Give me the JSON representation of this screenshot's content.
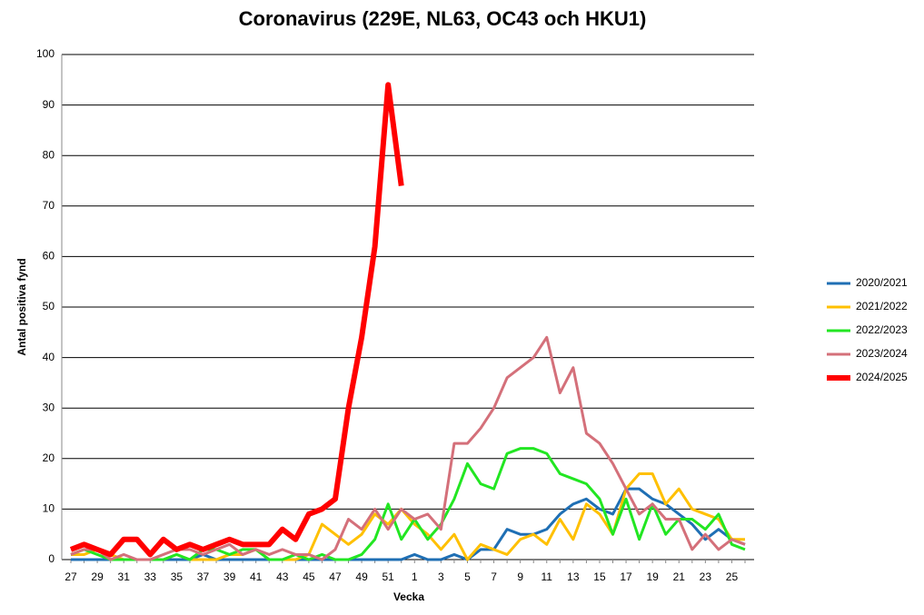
{
  "chart_data": {
    "type": "line",
    "title": "Coronavirus (229E, NL63, OC43 och HKU1)",
    "x_label": "Vecka",
    "y_label": "Antal positiva fynd",
    "categories": [
      "27",
      null,
      "29",
      null,
      "31",
      null,
      "33",
      null,
      "35",
      null,
      "37",
      null,
      "39",
      null,
      "41",
      null,
      "43",
      null,
      "45",
      null,
      "47",
      null,
      "49",
      null,
      "51",
      null,
      "1",
      null,
      "3",
      null,
      "5",
      null,
      "7",
      null,
      "9",
      null,
      "11",
      null,
      "13",
      null,
      "15",
      null,
      "17",
      null,
      "19",
      null,
      "21",
      null,
      "23",
      null,
      "25",
      null
    ],
    "ylim": [
      0,
      100
    ],
    "yticks": [
      0,
      10,
      20,
      30,
      40,
      50,
      60,
      70,
      80,
      90,
      100
    ],
    "grid": true,
    "legend": "right",
    "series": [
      {
        "name": "2020/2021",
        "color": "#1f6fb4",
        "width": 3,
        "values": [
          0,
          0,
          0,
          0,
          0,
          0,
          0,
          0,
          0,
          0,
          1,
          0,
          0,
          0,
          0,
          0,
          0,
          0,
          0,
          0,
          0,
          0,
          0,
          0,
          0,
          0,
          1,
          0,
          0,
          1,
          0,
          2,
          2,
          6,
          5,
          5,
          6,
          9,
          11,
          12,
          10,
          9,
          14,
          14,
          12,
          11,
          9,
          7,
          4,
          6,
          4,
          3
        ]
      },
      {
        "name": "2021/2022",
        "color": "#ffc000",
        "width": 3,
        "values": [
          1,
          1,
          2,
          1,
          0,
          0,
          0,
          0,
          1,
          0,
          0,
          0,
          1,
          1,
          2,
          0,
          0,
          0,
          1,
          7,
          5,
          3,
          5,
          9,
          7,
          10,
          7,
          5,
          2,
          5,
          0,
          3,
          2,
          1,
          4,
          5,
          3,
          8,
          4,
          11,
          9,
          5,
          14,
          17,
          17,
          11,
          14,
          10,
          9,
          8,
          4,
          4
        ]
      },
      {
        "name": "2022/2023",
        "color": "#22e622",
        "width": 3,
        "values": [
          1,
          2,
          1,
          0,
          0,
          0,
          0,
          0,
          1,
          0,
          2,
          2,
          1,
          2,
          2,
          0,
          0,
          1,
          0,
          1,
          0,
          0,
          1,
          4,
          11,
          4,
          8,
          4,
          7,
          12,
          19,
          15,
          14,
          21,
          22,
          22,
          21,
          17,
          16,
          15,
          12,
          5,
          12,
          4,
          11,
          5,
          8,
          8,
          6,
          9,
          3,
          2
        ]
      },
      {
        "name": "2023/2024",
        "color": "#d4707a",
        "width": 3,
        "values": [
          1,
          2,
          2,
          0,
          1,
          0,
          0,
          1,
          2,
          2,
          1,
          2,
          3,
          1,
          2,
          1,
          2,
          1,
          1,
          0,
          2,
          8,
          6,
          10,
          6,
          10,
          8,
          9,
          6,
          23,
          23,
          26,
          30,
          36,
          38,
          40,
          44,
          33,
          38,
          25,
          23,
          19,
          14,
          9,
          11,
          8,
          8,
          2,
          5,
          2,
          4,
          3
        ]
      },
      {
        "name": "2024/2025",
        "color": "#ff0000",
        "width": 6,
        "values": [
          2,
          3,
          2,
          1,
          4,
          4,
          1,
          4,
          2,
          3,
          2,
          3,
          4,
          3,
          3,
          3,
          6,
          4,
          9,
          10,
          12,
          30,
          44,
          62,
          94,
          74,
          null,
          null,
          null,
          null,
          null,
          null,
          null,
          null,
          null,
          null,
          null,
          null,
          null,
          null,
          null,
          null,
          null,
          null,
          null,
          null,
          null,
          null,
          null,
          null,
          null,
          null
        ]
      }
    ]
  }
}
